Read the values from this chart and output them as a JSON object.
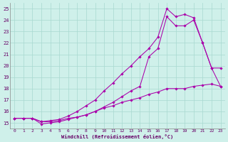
{
  "bg_color": "#cff0ea",
  "grid_color": "#a8d8d0",
  "line_color": "#aa00aa",
  "xlabel": "Windchill (Refroidissement éolien,°C)",
  "xlim": [
    -0.5,
    23.5
  ],
  "ylim": [
    14.5,
    25.5
  ],
  "yticks": [
    15,
    16,
    17,
    18,
    19,
    20,
    21,
    22,
    23,
    24,
    25
  ],
  "xticks": [
    0,
    1,
    2,
    3,
    4,
    5,
    6,
    7,
    8,
    9,
    10,
    11,
    12,
    13,
    14,
    15,
    16,
    17,
    18,
    19,
    20,
    21,
    22,
    23
  ],
  "series": [
    {
      "x": [
        0,
        1,
        2,
        3,
        4,
        5,
        6,
        7,
        8,
        9,
        10,
        11,
        12,
        13,
        14,
        15,
        16,
        17,
        18,
        19,
        20,
        21,
        22,
        23
      ],
      "y": [
        15.4,
        15.4,
        15.4,
        14.9,
        15.0,
        15.1,
        15.3,
        15.5,
        15.7,
        16.0,
        16.3,
        16.5,
        16.8,
        17.0,
        17.2,
        17.5,
        17.7,
        18.0,
        18.0,
        18.0,
        18.2,
        18.3,
        18.4,
        18.2
      ]
    },
    {
      "x": [
        0,
        1,
        2,
        3,
        4,
        5,
        6,
        7,
        8,
        9,
        10,
        11,
        12,
        13,
        14,
        15,
        16,
        17,
        18,
        19,
        20,
        21,
        22,
        23
      ],
      "y": [
        15.4,
        15.4,
        15.4,
        15.1,
        15.1,
        15.2,
        15.4,
        15.5,
        15.7,
        16.0,
        16.4,
        16.8,
        17.3,
        17.8,
        18.2,
        20.8,
        21.5,
        24.3,
        23.5,
        23.5,
        24.0,
        22.0,
        19.8,
        19.8
      ]
    },
    {
      "x": [
        0,
        1,
        2,
        3,
        4,
        5,
        6,
        7,
        8,
        9,
        10,
        11,
        12,
        13,
        14,
        15,
        16,
        17,
        18,
        19,
        20,
        21,
        22,
        23
      ],
      "y": [
        15.4,
        15.4,
        15.4,
        15.1,
        15.2,
        15.3,
        15.6,
        16.0,
        16.5,
        17.0,
        17.8,
        18.5,
        19.3,
        20.0,
        20.8,
        21.5,
        22.5,
        25.0,
        24.3,
        24.5,
        24.2,
        22.0,
        19.8,
        18.2
      ]
    }
  ]
}
